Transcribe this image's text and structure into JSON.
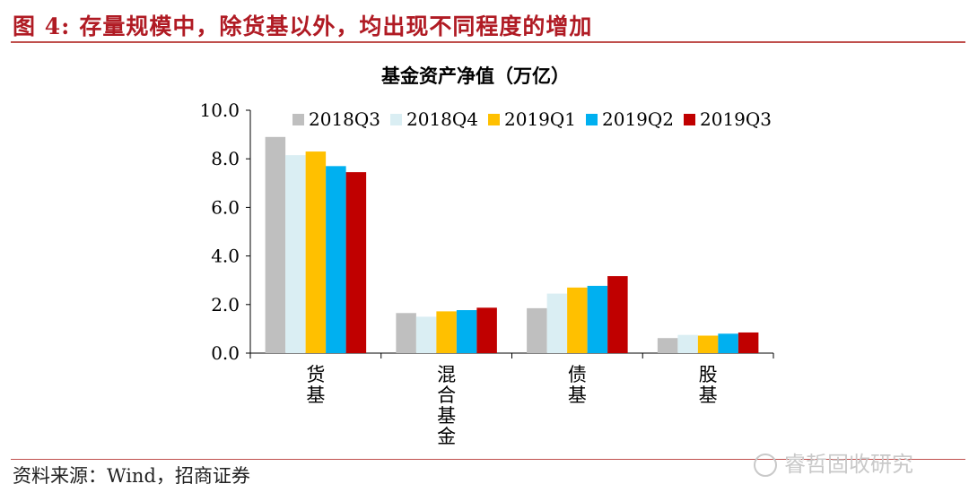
{
  "header": {
    "figure_number": "图 4:",
    "title": "存量规模中，除货基以外，均出现不同程度的增加"
  },
  "footer": {
    "source": "资料来源：Wind，招商证券",
    "watermark": "睿哲固收研究"
  },
  "colors": {
    "accent": "#b01b24",
    "rule": "#c0504d",
    "watermark_icon": "wechat-icon"
  },
  "chart_data": {
    "type": "bar",
    "title": "基金资产净值（万亿）",
    "xlabel": "",
    "ylabel": "",
    "ylim": [
      0,
      10
    ],
    "yticks": [
      "0.0",
      "2.0",
      "4.0",
      "6.0",
      "8.0",
      "10.0"
    ],
    "grid": false,
    "legend_position": "top",
    "categories": [
      "货基",
      "混合基金",
      "债基",
      "股基"
    ],
    "series": [
      {
        "name": "2018Q3",
        "color": "#bfbfbf",
        "values": [
          8.9,
          1.65,
          1.85,
          0.62
        ]
      },
      {
        "name": "2018Q4",
        "color": "#daeef3",
        "values": [
          8.15,
          1.5,
          2.45,
          0.75
        ]
      },
      {
        "name": "2019Q1",
        "color": "#ffc000",
        "values": [
          8.3,
          1.72,
          2.7,
          0.72
        ]
      },
      {
        "name": "2019Q2",
        "color": "#00b0f0",
        "values": [
          7.7,
          1.77,
          2.77,
          0.8
        ]
      },
      {
        "name": "2019Q3",
        "color": "#c00000",
        "values": [
          7.45,
          1.87,
          3.17,
          0.85
        ]
      }
    ]
  }
}
